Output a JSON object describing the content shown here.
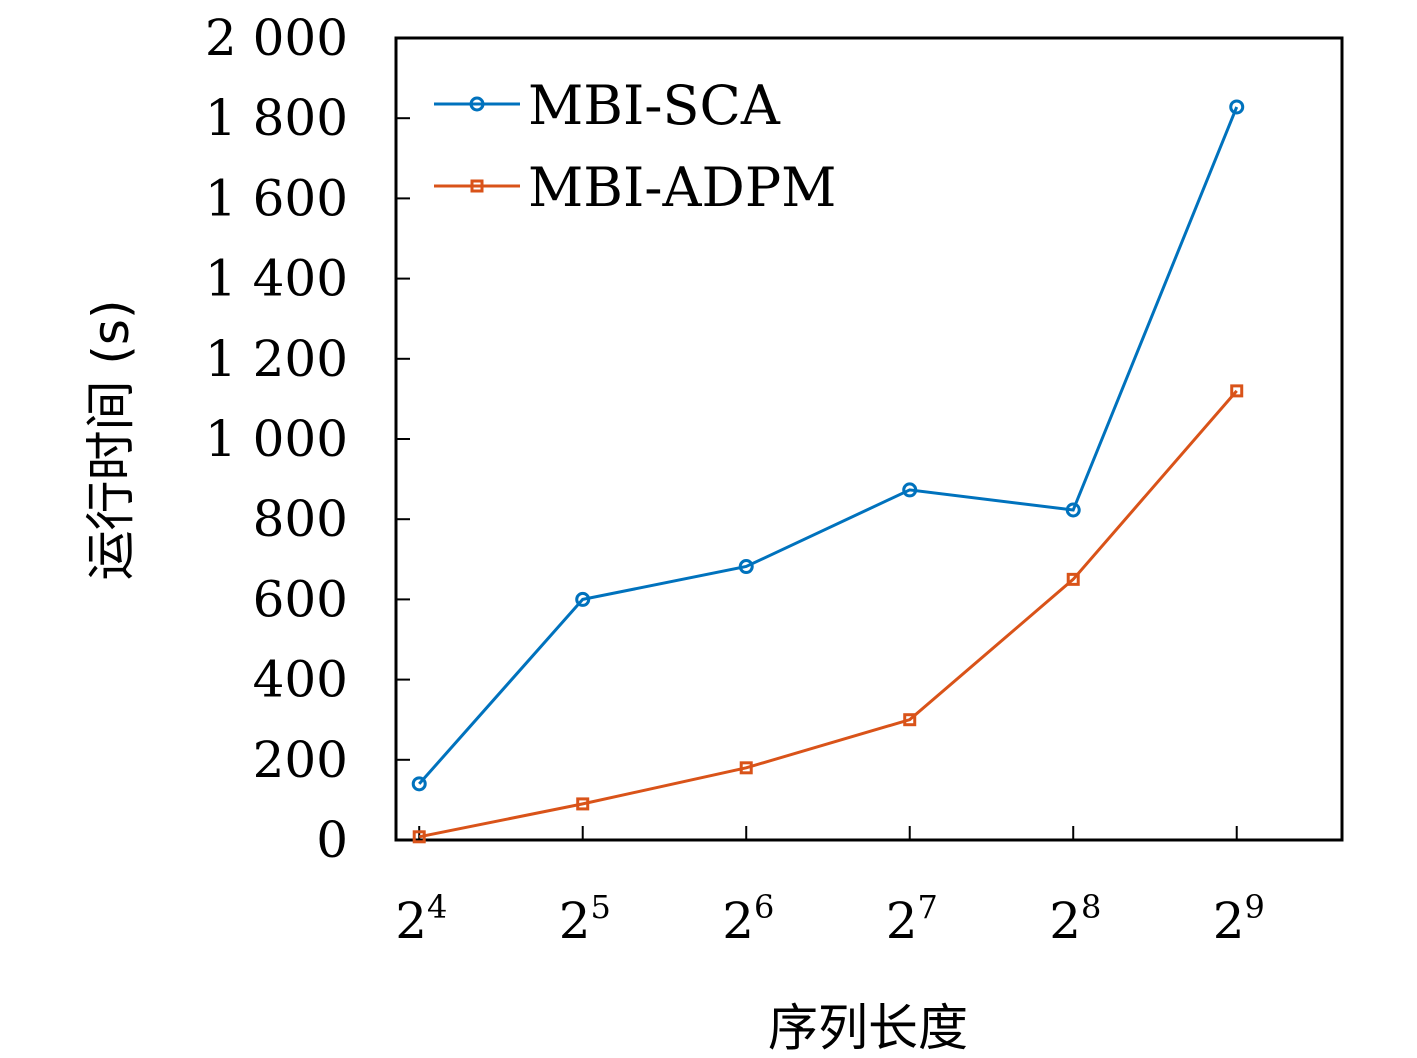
{
  "chart_data": {
    "type": "line",
    "xlabel": "序列长度",
    "ylabel": "运行时间 (s)",
    "x_scale": "log2",
    "x": [
      16,
      32,
      64,
      128,
      256,
      512
    ],
    "xtick_labels": [
      {
        "base": "2",
        "exp": "4"
      },
      {
        "base": "2",
        "exp": "5"
      },
      {
        "base": "2",
        "exp": "6"
      },
      {
        "base": "2",
        "exp": "7"
      },
      {
        "base": "2",
        "exp": "8"
      },
      {
        "base": "2",
        "exp": "9"
      }
    ],
    "xlim": [
      14.5,
      800
    ],
    "ylim": [
      0,
      2000
    ],
    "yticks": [
      0,
      200,
      400,
      600,
      800,
      1000,
      1200,
      1400,
      1600,
      1800,
      2000
    ],
    "ytick_labels": [
      "0",
      "200",
      "400",
      "600",
      "800",
      "1 000",
      "1 200",
      "1 400",
      "1 600",
      "1 800",
      "2 000"
    ],
    "legend_position": "top-left",
    "series": [
      {
        "name": "MBI-SCA",
        "color": "#0072BD",
        "marker": "circle",
        "values": [
          140,
          600,
          682,
          873,
          823,
          1828
        ]
      },
      {
        "name": "MBI-ADPM",
        "color": "#D95319",
        "marker": "square",
        "values": [
          8,
          90,
          180,
          300,
          650,
          1120
        ]
      }
    ]
  }
}
